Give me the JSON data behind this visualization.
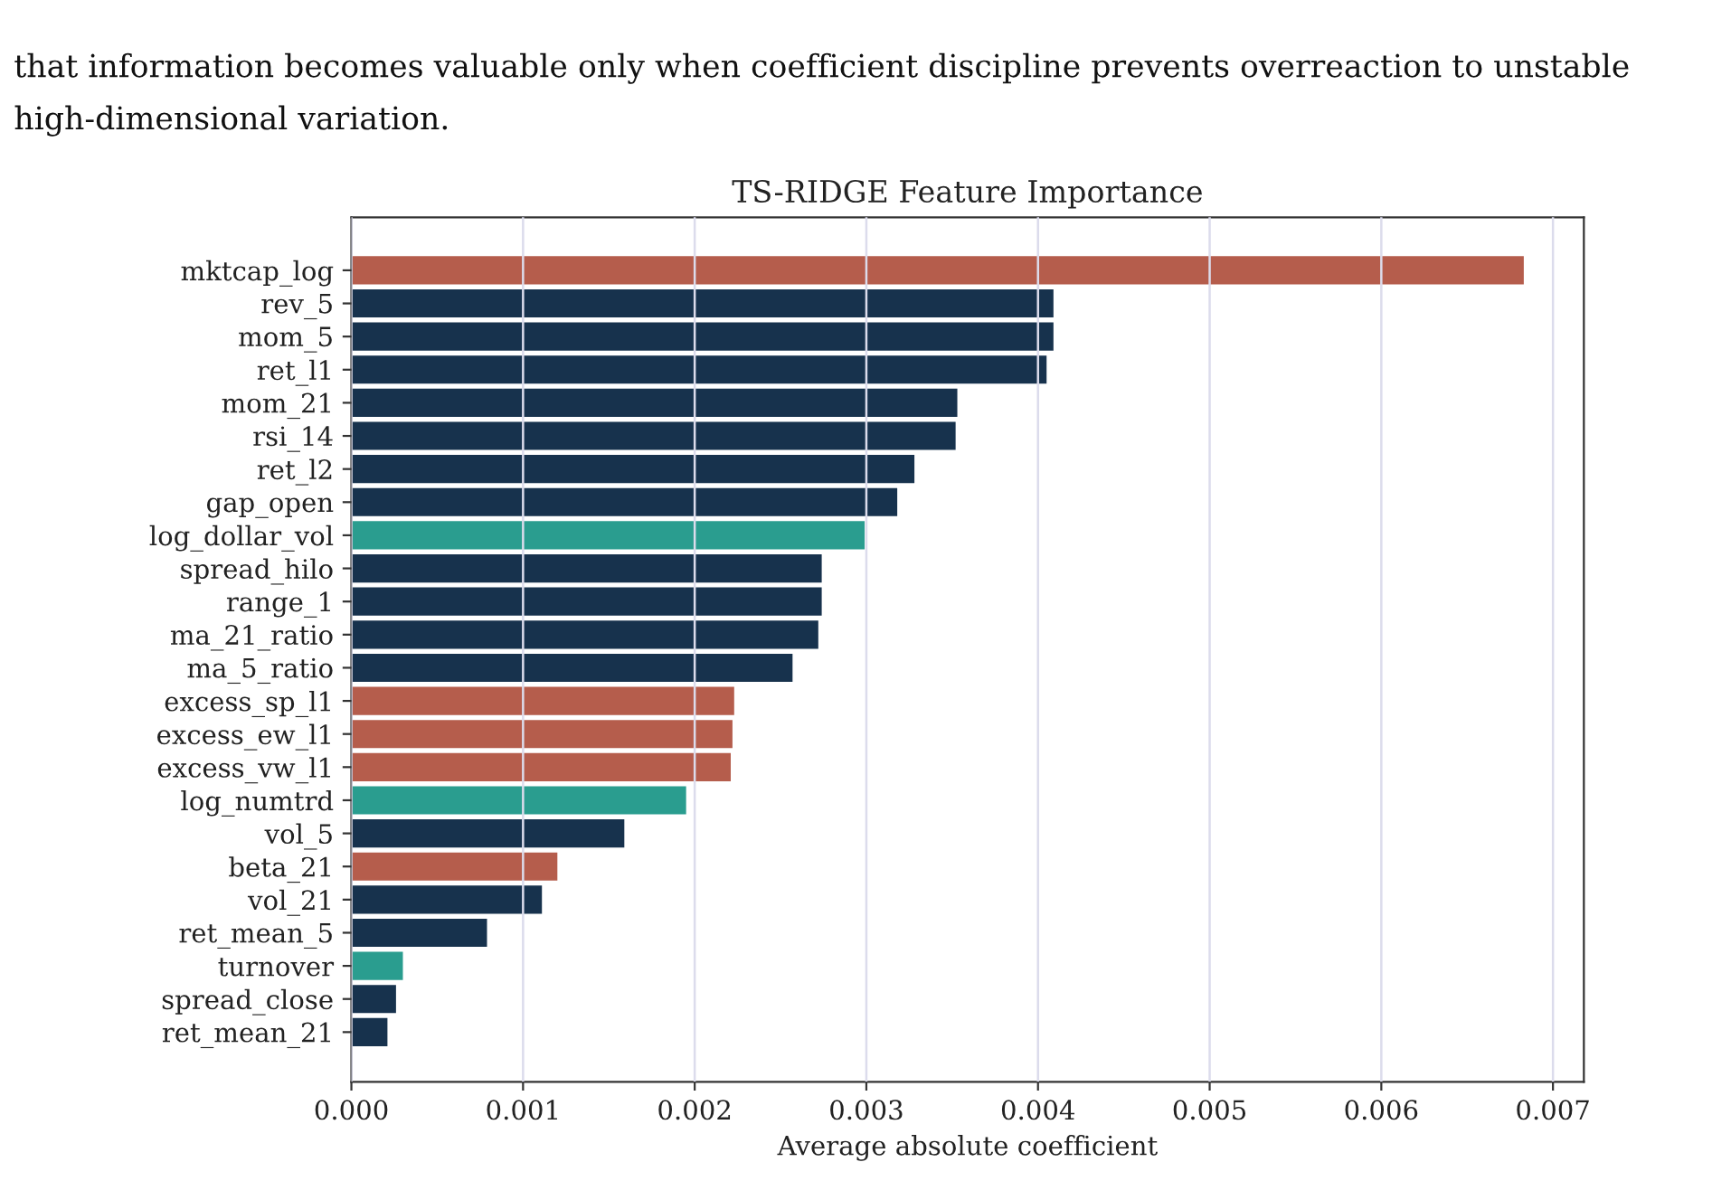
{
  "chart_data": {
    "type": "bar",
    "orientation": "horizontal",
    "title": "TS-RIDGE Feature Importance",
    "xlabel": "Average absolute coefficient",
    "annotations": [
      "that information becomes valuable only when coefficient discipline prevents overreaction to unstable high-dimensional variation."
    ],
    "categories": [
      "mktcap_log",
      "rev_5",
      "mom_5",
      "ret_l1",
      "mom_21",
      "rsi_14",
      "ret_l2",
      "gap_open",
      "log_dollar_vol",
      "spread_hilo",
      "range_1",
      "ma_21_ratio",
      "ma_5_ratio",
      "excess_sp_l1",
      "excess_ew_l1",
      "excess_vw_l1",
      "log_numtrd",
      "vol_5",
      "beta_21",
      "vol_21",
      "ret_mean_5",
      "turnover",
      "spread_close",
      "ret_mean_21"
    ],
    "values": [
      0.00683,
      0.00409,
      0.00409,
      0.00405,
      0.00353,
      0.00352,
      0.00328,
      0.00318,
      0.00299,
      0.00274,
      0.00274,
      0.00272,
      0.00257,
      0.00223,
      0.00222,
      0.00221,
      0.00195,
      0.00159,
      0.0012,
      0.00111,
      0.00079,
      0.0003,
      0.00026,
      0.00021
    ],
    "colors": [
      "#b55d4c",
      "#17324d",
      "#17324d",
      "#17324d",
      "#17324d",
      "#17324d",
      "#17324d",
      "#17324d",
      "#2a9d8f",
      "#17324d",
      "#17324d",
      "#17324d",
      "#17324d",
      "#b55d4c",
      "#b55d4c",
      "#b55d4c",
      "#2a9d8f",
      "#17324d",
      "#b55d4c",
      "#17324d",
      "#17324d",
      "#2a9d8f",
      "#17324d",
      "#17324d"
    ],
    "xlim": [
      0,
      0.00718
    ],
    "xticks": [
      {
        "value": 0,
        "label": "0.000"
      },
      {
        "value": 0.001,
        "label": "0.001"
      },
      {
        "value": 0.002,
        "label": "0.002"
      },
      {
        "value": 0.003,
        "label": "0.003"
      },
      {
        "value": 0.004,
        "label": "0.004"
      },
      {
        "value": 0.005,
        "label": "0.005"
      },
      {
        "value": 0.006,
        "label": "0.006"
      },
      {
        "value": 0.007,
        "label": "0.007"
      }
    ],
    "grid": "x"
  }
}
